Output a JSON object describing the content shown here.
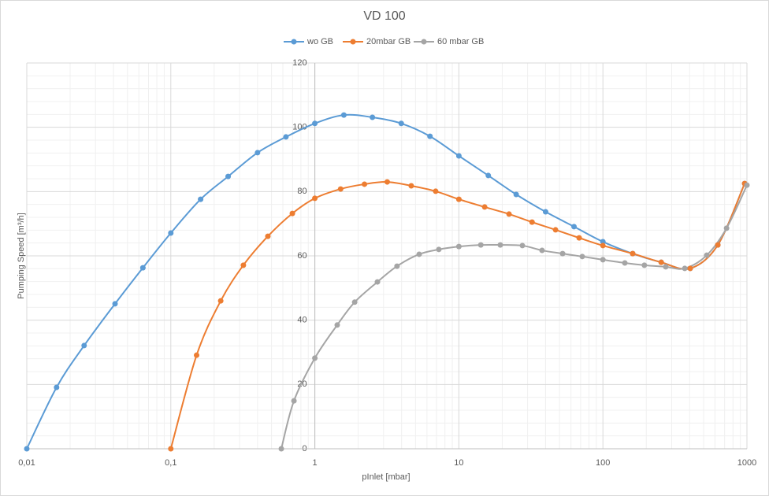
{
  "chart_data": {
    "type": "line",
    "title": "VD 100",
    "x_label": "pInlet [mbar]",
    "y_label": "Pumping Speed [m³/h]",
    "xscale": "log",
    "grid": true,
    "minor_grid": true,
    "legend": "top",
    "xlim": [
      0.01,
      1000
    ],
    "xticks": [
      {
        "value": 0.01,
        "label": "0,01"
      },
      {
        "value": 0.1,
        "label": "0,1"
      },
      1,
      10,
      100,
      1000
    ],
    "ylim": [
      0,
      120
    ],
    "yticks": [
      0,
      20,
      40,
      60,
      80,
      100,
      120
    ],
    "series": [
      {
        "name": "wo GB",
        "color": "#5b9bd5",
        "x": [
          0.01,
          0.0161,
          0.025,
          0.041,
          0.064,
          0.1,
          0.161,
          0.25,
          0.4,
          0.63,
          1,
          1.59,
          2.51,
          3.98,
          6.3,
          10,
          16,
          25,
          40,
          63,
          100,
          161,
          254,
          404,
          628,
          964
        ],
        "values": [
          0,
          19.1,
          32.1,
          45.1,
          56.3,
          67.1,
          77.6,
          84.7,
          92.1,
          97.0,
          101.2,
          103.8,
          103.1,
          101.2,
          97.2,
          91.1,
          85.0,
          79.1,
          73.7,
          69.1,
          64.4,
          60.7,
          58.0,
          56.1,
          63.4,
          82.5
        ]
      },
      {
        "name": "20mbar GB",
        "color": "#ed7d31",
        "x": [
          0.1,
          0.151,
          0.222,
          0.319,
          0.472,
          0.698,
          1,
          1.51,
          2.21,
          3.18,
          4.67,
          6.9,
          10,
          15.1,
          22.3,
          32.2,
          46.9,
          68.4,
          100,
          161,
          254,
          404,
          628,
          964
        ],
        "values": [
          0,
          29.1,
          46.0,
          57.1,
          66.1,
          73.2,
          77.9,
          80.8,
          82.3,
          83.0,
          81.8,
          80.1,
          77.6,
          75.2,
          73.0,
          70.5,
          68.1,
          65.6,
          63.2,
          60.7,
          58.0,
          56.1,
          63.4,
          82.5
        ]
      },
      {
        "name": "60 mbar GB",
        "color": "#a5a5a5",
        "x": [
          0.585,
          0.716,
          1,
          1.43,
          1.89,
          2.72,
          3.72,
          5.3,
          7.26,
          10,
          14.2,
          19.4,
          27.6,
          37.8,
          52.5,
          71.9,
          100,
          142,
          194,
          273,
          370,
          526,
          722,
          1000
        ],
        "values": [
          0,
          14.9,
          28.2,
          38.5,
          45.6,
          51.9,
          56.8,
          60.5,
          62.0,
          62.9,
          63.4,
          63.4,
          63.2,
          61.7,
          60.7,
          59.8,
          58.8,
          57.8,
          57.1,
          56.6,
          56.1,
          60.2,
          68.6,
          82.0
        ]
      }
    ]
  }
}
